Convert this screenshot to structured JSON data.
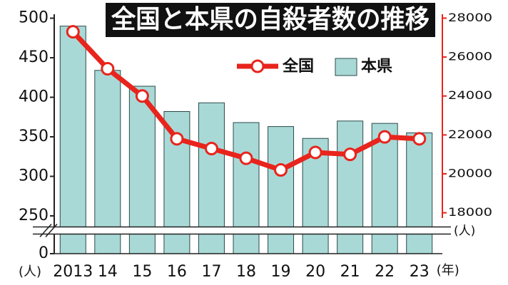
{
  "chart_data": {
    "type": "bar-line",
    "title": "全国と本県の自殺者数の推移",
    "categories": [
      "2013",
      "14",
      "15",
      "16",
      "17",
      "18",
      "19",
      "20",
      "21",
      "22",
      "23"
    ],
    "series": [
      {
        "name": "本県",
        "type": "bar",
        "color": "#a9d9d6",
        "values": [
          490,
          434,
          414,
          382,
          393,
          368,
          363,
          348,
          370,
          367,
          355
        ]
      },
      {
        "name": "全国",
        "type": "line",
        "axis": "y2",
        "color": "#e8241c",
        "values": [
          27300,
          25400,
          24000,
          21800,
          21300,
          20800,
          20200,
          21100,
          21000,
          21900,
          21800
        ]
      }
    ],
    "ylim": [
      0,
      505
    ],
    "yticks": [
      0,
      250,
      300,
      350,
      400,
      450,
      500
    ],
    "axis_break": true,
    "y2lim": [
      15900,
      28200
    ],
    "y2ticks": [
      18000,
      20000,
      22000,
      24000,
      26000,
      28000
    ],
    "y_unit_label": "(人)",
    "y2_unit_label": "(人)",
    "x_unit_label": "(年)",
    "legend": "top-right"
  }
}
